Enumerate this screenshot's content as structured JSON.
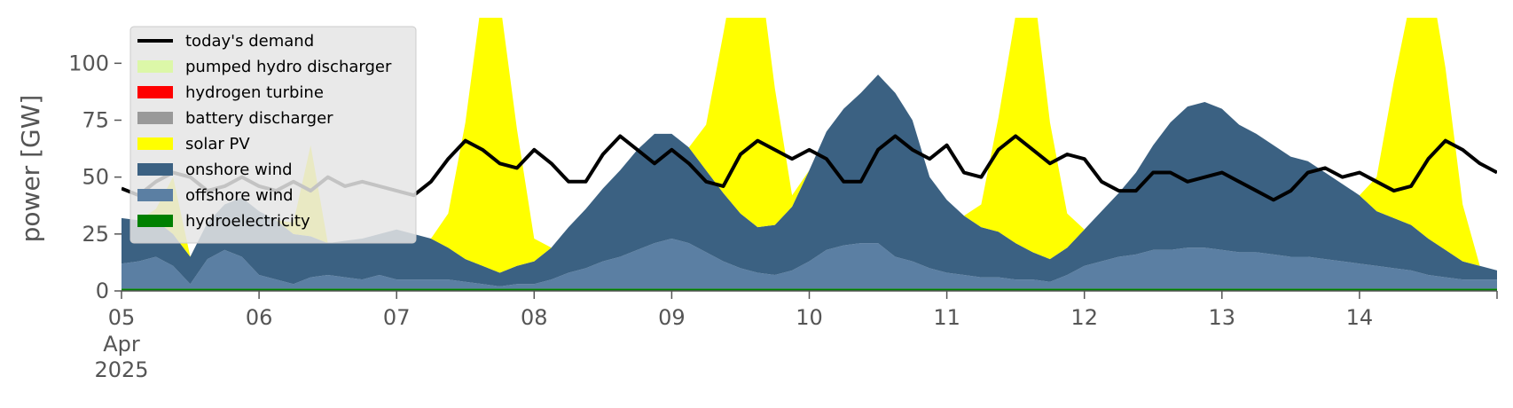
{
  "chart_data": {
    "type": "area",
    "ylabel": "power [GW]",
    "ylim": [
      0,
      120
    ],
    "y_ticks": [
      0,
      25,
      50,
      75,
      100
    ],
    "x_start": "2025-04-05 00:00",
    "x_end": "2025-04-15 00:00",
    "x_ticks": [
      {
        "day": 0,
        "label": "05",
        "sub1": "Apr",
        "sub2": "2025"
      },
      {
        "day": 1,
        "label": "06"
      },
      {
        "day": 2,
        "label": "07"
      },
      {
        "day": 3,
        "label": "08"
      },
      {
        "day": 4,
        "label": "09"
      },
      {
        "day": 5,
        "label": "10"
      },
      {
        "day": 6,
        "label": "11"
      },
      {
        "day": 7,
        "label": "12"
      },
      {
        "day": 8,
        "label": "13"
      },
      {
        "day": 9,
        "label": "14"
      }
    ],
    "grid": false,
    "legend_position": "top-left",
    "legend": [
      {
        "label": "today's demand",
        "color": "#000000",
        "kind": "line"
      },
      {
        "label": "pumped hydro discharger",
        "color": "#dcf7a8",
        "kind": "patch"
      },
      {
        "label": "hydrogen turbine",
        "color": "#ff0000",
        "kind": "patch"
      },
      {
        "label": "battery discharger",
        "color": "#999999",
        "kind": "patch"
      },
      {
        "label": "solar PV",
        "color": "#ffff00",
        "kind": "patch"
      },
      {
        "label": "onshore wind",
        "color": "#3b6182",
        "kind": "patch"
      },
      {
        "label": "offshore wind",
        "color": "#5b7fa3",
        "kind": "patch"
      },
      {
        "label": "hydroelectricity",
        "color": "#008000",
        "kind": "patch"
      }
    ],
    "series_order_bottom_to_top": [
      "hydroelectricity",
      "offshore wind",
      "onshore wind",
      "solar PV",
      "battery discharger",
      "hydrogen turbine",
      "pumped hydro discharger"
    ],
    "x_hours": [
      0,
      3,
      6,
      9,
      12,
      15,
      18,
      21,
      24,
      27,
      30,
      33,
      36,
      39,
      42,
      45,
      48,
      51,
      54,
      57,
      60,
      63,
      66,
      69,
      72,
      75,
      78,
      81,
      84,
      87,
      90,
      93,
      96,
      99,
      102,
      105,
      108,
      111,
      114,
      117,
      120,
      123,
      126,
      129,
      132,
      135,
      138,
      141,
      144,
      147,
      150,
      153,
      156,
      159,
      162,
      165,
      168,
      171,
      174,
      177,
      180,
      183,
      186,
      189,
      192,
      195,
      198,
      201,
      204,
      207,
      210,
      213,
      216,
      219,
      222,
      225,
      228,
      231,
      234,
      237,
      240
    ],
    "series": [
      {
        "name": "hydroelectricity",
        "color": "#008000",
        "values": [
          1,
          1,
          1,
          1,
          1,
          1,
          1,
          1,
          1,
          1,
          1,
          1,
          1,
          1,
          1,
          1,
          1,
          1,
          1,
          1,
          1,
          1,
          1,
          1,
          1,
          1,
          1,
          1,
          1,
          1,
          1,
          1,
          1,
          1,
          1,
          1,
          1,
          1,
          1,
          1,
          1,
          1,
          1,
          1,
          1,
          1,
          1,
          1,
          1,
          1,
          1,
          1,
          1,
          1,
          1,
          1,
          1,
          1,
          1,
          1,
          1,
          1,
          1,
          1,
          1,
          1,
          1,
          1,
          1,
          1,
          1,
          1,
          1,
          1,
          1,
          1,
          1,
          1,
          1,
          1,
          1
        ]
      },
      {
        "name": "offshore wind",
        "color": "#5b7fa3",
        "values": [
          11,
          12,
          14,
          10,
          2,
          13,
          17,
          14,
          6,
          4,
          2,
          5,
          6,
          5,
          4,
          6,
          4,
          4,
          4,
          4,
          3,
          2,
          1,
          2,
          2,
          4,
          7,
          9,
          12,
          14,
          17,
          20,
          22,
          20,
          16,
          12,
          9,
          7,
          6,
          8,
          12,
          17,
          19,
          20,
          20,
          14,
          12,
          9,
          7,
          6,
          5,
          5,
          4,
          4,
          3,
          6,
          10,
          12,
          14,
          15,
          17,
          17,
          18,
          18,
          17,
          16,
          16,
          15,
          14,
          14,
          13,
          12,
          11,
          10,
          9,
          8,
          6,
          5,
          4,
          4,
          4
        ]
      },
      {
        "name": "onshore wind",
        "color": "#3b6182",
        "values": [
          20,
          18,
          16,
          14,
          12,
          16,
          20,
          26,
          28,
          26,
          22,
          18,
          14,
          16,
          18,
          18,
          22,
          20,
          18,
          14,
          10,
          8,
          6,
          8,
          10,
          14,
          20,
          26,
          32,
          38,
          44,
          48,
          46,
          42,
          36,
          30,
          24,
          20,
          22,
          28,
          40,
          52,
          60,
          66,
          74,
          72,
          62,
          40,
          32,
          26,
          22,
          20,
          16,
          12,
          10,
          12,
          16,
          22,
          28,
          36,
          46,
          56,
          62,
          64,
          62,
          56,
          52,
          48,
          44,
          42,
          38,
          34,
          30,
          24,
          22,
          20,
          16,
          12,
          8,
          6,
          4
        ]
      },
      {
        "name": "solar PV",
        "color": "#ffff00",
        "values": [
          0,
          0,
          5,
          25,
          0,
          0,
          0,
          0,
          0,
          0,
          5,
          40,
          0,
          0,
          0,
          0,
          0,
          0,
          0,
          15,
          60,
          120,
          120,
          60,
          10,
          0,
          0,
          0,
          0,
          0,
          0,
          0,
          0,
          0,
          20,
          70,
          120,
          120,
          60,
          5,
          0,
          0,
          0,
          0,
          0,
          0,
          0,
          0,
          0,
          0,
          10,
          50,
          100,
          120,
          60,
          15,
          0,
          0,
          0,
          0,
          0,
          0,
          0,
          0,
          0,
          0,
          0,
          0,
          0,
          0,
          0,
          0,
          0,
          15,
          60,
          100,
          120,
          80,
          25,
          0,
          0
        ]
      },
      {
        "name": "battery discharger",
        "color": "#999999",
        "values": [
          0,
          0,
          0,
          0,
          0,
          0,
          0,
          0,
          0,
          0,
          0,
          0,
          0,
          0,
          0,
          0,
          0,
          0,
          0,
          0,
          0,
          0,
          0,
          0,
          0,
          0,
          0,
          0,
          0,
          0,
          0,
          0,
          0,
          0,
          0,
          0,
          0,
          0,
          0,
          0,
          0,
          0,
          0,
          0,
          0,
          0,
          0,
          0,
          0,
          0,
          0,
          0,
          0,
          0,
          0,
          0,
          0,
          0,
          0,
          0,
          0,
          0,
          0,
          0,
          0,
          0,
          0,
          0,
          0,
          0,
          0,
          0,
          0,
          0,
          0,
          0,
          0,
          0,
          0,
          0,
          0
        ]
      },
      {
        "name": "hydrogen turbine",
        "color": "#ff0000",
        "values": [
          0,
          0,
          0,
          0,
          0,
          0,
          0,
          0,
          0,
          0,
          0,
          0,
          0,
          0,
          0,
          0,
          0,
          0,
          0,
          0,
          0,
          0,
          0,
          0,
          0,
          0,
          0,
          0,
          0,
          0,
          0,
          0,
          0,
          0,
          0,
          0,
          0,
          0,
          0,
          0,
          0,
          0,
          0,
          0,
          0,
          0,
          0,
          0,
          0,
          0,
          0,
          0,
          0,
          0,
          0,
          0,
          0,
          0,
          0,
          0,
          0,
          0,
          0,
          0,
          0,
          0,
          0,
          0,
          0,
          0,
          0,
          0,
          0,
          0,
          0,
          0,
          0,
          0,
          0,
          0,
          0
        ]
      },
      {
        "name": "pumped hydro discharger",
        "color": "#dcf7a8",
        "values": [
          0,
          0,
          0,
          0,
          0,
          0,
          0,
          0,
          0,
          0,
          0,
          0,
          0,
          0,
          0,
          0,
          0,
          0,
          0,
          0,
          0,
          0,
          0,
          0,
          0,
          0,
          0,
          0,
          0,
          0,
          0,
          0,
          0,
          0,
          0,
          0,
          0,
          0,
          0,
          0,
          0,
          0,
          0,
          0,
          0,
          0,
          0,
          0,
          0,
          0,
          0,
          0,
          0,
          0,
          0,
          0,
          0,
          0,
          0,
          0,
          0,
          0,
          0,
          0,
          0,
          0,
          0,
          0,
          0,
          0,
          0,
          0,
          0,
          0,
          0,
          0,
          0,
          0,
          0,
          0,
          0
        ]
      },
      {
        "name": "today's demand",
        "color": "#000000",
        "kind": "line",
        "values": [
          45,
          42,
          48,
          52,
          50,
          44,
          46,
          50,
          46,
          44,
          48,
          44,
          50,
          46,
          48,
          46,
          44,
          42,
          48,
          58,
          66,
          62,
          56,
          54,
          62,
          56,
          48,
          48,
          60,
          68,
          62,
          56,
          62,
          56,
          48,
          46,
          60,
          66,
          62,
          58,
          62,
          58,
          48,
          48,
          62,
          68,
          62,
          58,
          64,
          52,
          50,
          62,
          68,
          62,
          56,
          60,
          58,
          48,
          44,
          44,
          52,
          52,
          48,
          50,
          52,
          48,
          44,
          40,
          44,
          52,
          54,
          50,
          52,
          48,
          44,
          46,
          58,
          66,
          62,
          56,
          52
        ]
      }
    ]
  }
}
